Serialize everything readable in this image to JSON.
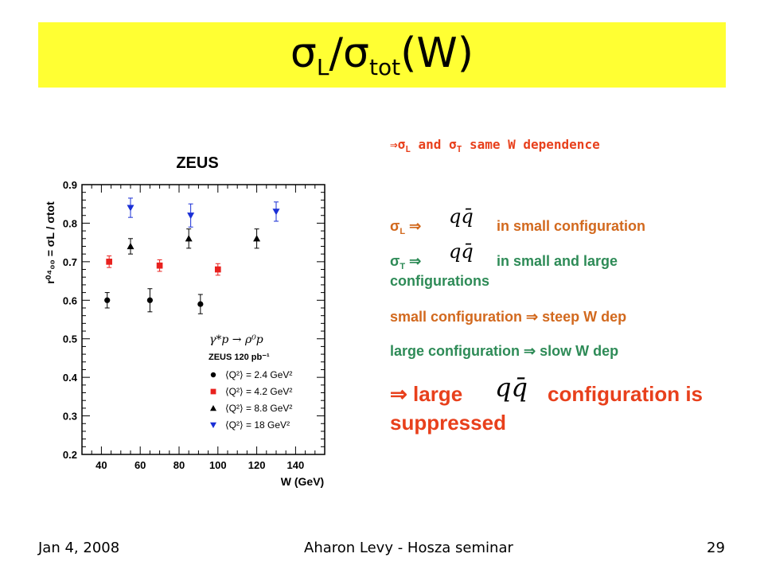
{
  "slide": {
    "title_sym": "σ",
    "title_sub1": "L",
    "title_mid": "/σ",
    "title_sub2": "tot",
    "title_tail": "(W)"
  },
  "bullets": {
    "b1_arrow": "⇒σ",
    "b1_sub_l": "L",
    "b1_and": " and σ",
    "b1_sub_t": "T",
    "b1_rest": " same W dependence",
    "b2_sigma": "σ",
    "b2_sub": "L",
    "b2_arrow": "⇒",
    "b2_rest": "in small configuration",
    "b3_sigma": "σ",
    "b3_sub": "T",
    "b3_arrow": "⇒",
    "b3_rest": "in small and large",
    "b3_cont": "configurations",
    "b4": "small configuration ⇒ steep W dep",
    "b5": "large configuration ⇒ slow W dep",
    "b6_arrow": "⇒ large",
    "b6_rest": "configuration is",
    "b6_cont": "suppressed",
    "qq_symbol": "qq̄"
  },
  "footer": {
    "date": "Jan 4, 2008",
    "center": "Aharon Levy - Hosza seminar",
    "page": "29"
  },
  "chart_data": {
    "type": "scatter",
    "title": "ZEUS",
    "xlabel": "W (GeV)",
    "ylabel": "r⁰⁴₀₀ = σL / σtot",
    "xlim": [
      30,
      155
    ],
    "ylim": [
      0.2,
      0.9
    ],
    "xticks": [
      40,
      60,
      80,
      100,
      120,
      140
    ],
    "yticks": [
      0.2,
      0.3,
      0.4,
      0.5,
      0.6,
      0.7,
      0.8,
      0.9
    ],
    "legend": {
      "process": "γ*p → ρ⁰p",
      "lumi": "ZEUS  120 pb⁻¹",
      "placement": "bottom-right"
    },
    "series": [
      {
        "name": "⟨Q²⟩ = 2.4 GeV²",
        "marker": "circle",
        "color": "#000000",
        "x": [
          43,
          65,
          91
        ],
        "y": [
          0.6,
          0.6,
          0.59
        ],
        "err": [
          0.02,
          0.03,
          0.025
        ]
      },
      {
        "name": "⟨Q²⟩ = 4.2 GeV²",
        "marker": "square",
        "color": "#e8211e",
        "x": [
          44,
          70,
          100
        ],
        "y": [
          0.7,
          0.69,
          0.68
        ],
        "err": [
          0.015,
          0.015,
          0.015
        ]
      },
      {
        "name": "⟨Q²⟩ = 8.8 GeV²",
        "marker": "triangle-up",
        "color": "#000000",
        "x": [
          55,
          85,
          120
        ],
        "y": [
          0.74,
          0.76,
          0.76
        ],
        "err": [
          0.02,
          0.025,
          0.025
        ]
      },
      {
        "name": "⟨Q²⟩ = 18 GeV²",
        "marker": "triangle-down",
        "color": "#1a2fd6",
        "x": [
          55,
          86,
          130
        ],
        "y": [
          0.84,
          0.82,
          0.83
        ],
        "err": [
          0.025,
          0.03,
          0.025
        ]
      }
    ]
  }
}
